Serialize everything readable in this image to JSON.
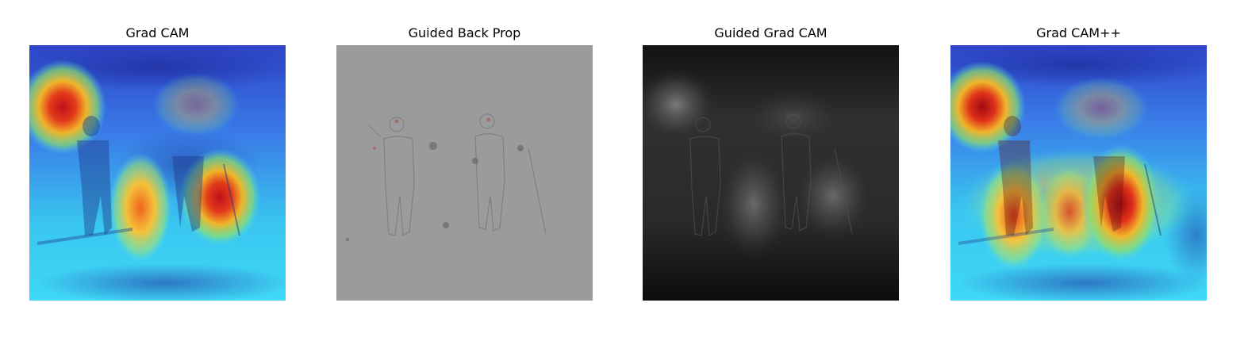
{
  "panels": [
    {
      "title": "Grad CAM",
      "kind": "heatmap"
    },
    {
      "title": "Guided Back Prop",
      "kind": "gradients"
    },
    {
      "title": "Guided Grad CAM",
      "kind": "grayscale"
    },
    {
      "title": "Grad CAM++",
      "kind": "heatmap"
    }
  ],
  "colors": {
    "heatmap_low": "#2a4fd6",
    "heatmap_mid": "#33d0f0",
    "heatmap_high": "#d01010",
    "gbp_background": "#9a9a9a",
    "gradcam_gray": "#1b1b1b"
  }
}
